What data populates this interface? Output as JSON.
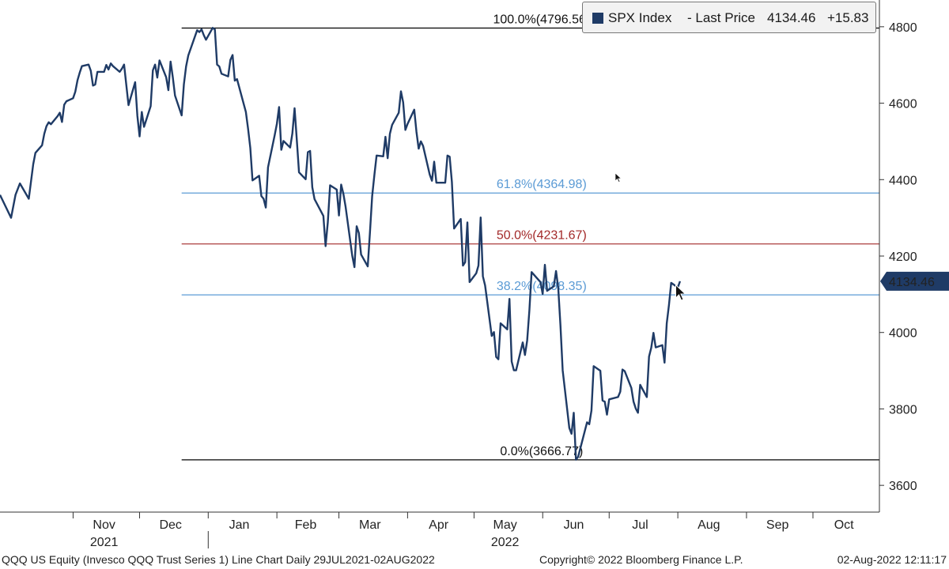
{
  "chart_data": {
    "type": "line",
    "series": [
      {
        "name": "SPX Index",
        "color": "#1f3b66",
        "points": [
          [
            "2021-09-29",
            4360
          ],
          [
            "2021-10-04",
            4300
          ],
          [
            "2021-10-06",
            4360
          ],
          [
            "2021-10-08",
            4390
          ],
          [
            "2021-10-12",
            4350
          ],
          [
            "2021-10-14",
            4440
          ],
          [
            "2021-10-15",
            4470
          ],
          [
            "2021-10-18",
            4490
          ],
          [
            "2021-10-19",
            4520
          ],
          [
            "2021-10-20",
            4540
          ],
          [
            "2021-10-21",
            4550
          ],
          [
            "2021-10-22",
            4545
          ],
          [
            "2021-10-25",
            4566
          ],
          [
            "2021-10-26",
            4575
          ],
          [
            "2021-10-27",
            4551
          ],
          [
            "2021-10-28",
            4596
          ],
          [
            "2021-10-29",
            4605
          ],
          [
            "2021-11-01",
            4613
          ],
          [
            "2021-11-02",
            4630
          ],
          [
            "2021-11-03",
            4660
          ],
          [
            "2021-11-04",
            4680
          ],
          [
            "2021-11-05",
            4697
          ],
          [
            "2021-11-08",
            4701
          ],
          [
            "2021-11-09",
            4685
          ],
          [
            "2021-11-10",
            4646
          ],
          [
            "2021-11-11",
            4649
          ],
          [
            "2021-11-12",
            4682
          ],
          [
            "2021-11-15",
            4682
          ],
          [
            "2021-11-16",
            4700
          ],
          [
            "2021-11-17",
            4688
          ],
          [
            "2021-11-18",
            4704
          ],
          [
            "2021-11-19",
            4697
          ],
          [
            "2021-11-22",
            4682
          ],
          [
            "2021-11-23",
            4690
          ],
          [
            "2021-11-24",
            4701
          ],
          [
            "2021-11-26",
            4595
          ],
          [
            "2021-11-29",
            4655
          ],
          [
            "2021-11-30",
            4567
          ],
          [
            "2021-12-01",
            4513
          ],
          [
            "2021-12-02",
            4577
          ],
          [
            "2021-12-03",
            4538
          ],
          [
            "2021-12-06",
            4592
          ],
          [
            "2021-12-07",
            4686
          ],
          [
            "2021-12-08",
            4701
          ],
          [
            "2021-12-09",
            4667
          ],
          [
            "2021-12-10",
            4712
          ],
          [
            "2021-12-13",
            4668
          ],
          [
            "2021-12-14",
            4634
          ],
          [
            "2021-12-15",
            4709
          ],
          [
            "2021-12-16",
            4668
          ],
          [
            "2021-12-17",
            4620
          ],
          [
            "2021-12-20",
            4568
          ],
          [
            "2021-12-21",
            4649
          ],
          [
            "2021-12-22",
            4696
          ],
          [
            "2021-12-23",
            4725
          ],
          [
            "2021-12-27",
            4791
          ],
          [
            "2021-12-28",
            4786
          ],
          [
            "2021-12-29",
            4793
          ],
          [
            "2021-12-30",
            4778
          ],
          [
            "2021-12-31",
            4766
          ],
          [
            "2022-01-03",
            4797
          ],
          [
            "2022-01-04",
            4793
          ],
          [
            "2022-01-05",
            4701
          ],
          [
            "2022-01-06",
            4696
          ],
          [
            "2022-01-07",
            4677
          ],
          [
            "2022-01-10",
            4670
          ],
          [
            "2022-01-11",
            4713
          ],
          [
            "2022-01-12",
            4726
          ],
          [
            "2022-01-13",
            4659
          ],
          [
            "2022-01-14",
            4663
          ],
          [
            "2022-01-18",
            4577
          ],
          [
            "2022-01-19",
            4533
          ],
          [
            "2022-01-20",
            4483
          ],
          [
            "2022-01-21",
            4398
          ],
          [
            "2022-01-24",
            4410
          ],
          [
            "2022-01-25",
            4357
          ],
          [
            "2022-01-26",
            4350
          ],
          [
            "2022-01-27",
            4327
          ],
          [
            "2022-01-28",
            4432
          ],
          [
            "2022-01-31",
            4516
          ],
          [
            "2022-02-01",
            4546
          ],
          [
            "2022-02-02",
            4590
          ],
          [
            "2022-02-03",
            4478
          ],
          [
            "2022-02-04",
            4501
          ],
          [
            "2022-02-07",
            4484
          ],
          [
            "2022-02-08",
            4521
          ],
          [
            "2022-02-09",
            4587
          ],
          [
            "2022-02-10",
            4504
          ],
          [
            "2022-02-11",
            4419
          ],
          [
            "2022-02-14",
            4401
          ],
          [
            "2022-02-15",
            4472
          ],
          [
            "2022-02-16",
            4475
          ],
          [
            "2022-02-17",
            4380
          ],
          [
            "2022-02-18",
            4349
          ],
          [
            "2022-02-22",
            4305
          ],
          [
            "2022-02-23",
            4226
          ],
          [
            "2022-02-24",
            4288
          ],
          [
            "2022-02-25",
            4385
          ],
          [
            "2022-02-28",
            4374
          ],
          [
            "2022-03-01",
            4306
          ],
          [
            "2022-03-02",
            4387
          ],
          [
            "2022-03-03",
            4363
          ],
          [
            "2022-03-04",
            4329
          ],
          [
            "2022-03-07",
            4201
          ],
          [
            "2022-03-08",
            4171
          ],
          [
            "2022-03-09",
            4278
          ],
          [
            "2022-03-10",
            4260
          ],
          [
            "2022-03-11",
            4204
          ],
          [
            "2022-03-14",
            4173
          ],
          [
            "2022-03-15",
            4262
          ],
          [
            "2022-03-16",
            4357
          ],
          [
            "2022-03-17",
            4412
          ],
          [
            "2022-03-18",
            4463
          ],
          [
            "2022-03-21",
            4461
          ],
          [
            "2022-03-22",
            4512
          ],
          [
            "2022-03-23",
            4456
          ],
          [
            "2022-03-24",
            4520
          ],
          [
            "2022-03-25",
            4543
          ],
          [
            "2022-03-28",
            4575
          ],
          [
            "2022-03-29",
            4631
          ],
          [
            "2022-03-30",
            4602
          ],
          [
            "2022-03-31",
            4530
          ],
          [
            "2022-04-01",
            4546
          ],
          [
            "2022-04-04",
            4583
          ],
          [
            "2022-04-05",
            4525
          ],
          [
            "2022-04-06",
            4481
          ],
          [
            "2022-04-07",
            4500
          ],
          [
            "2022-04-08",
            4488
          ],
          [
            "2022-04-11",
            4413
          ],
          [
            "2022-04-12",
            4397
          ],
          [
            "2022-04-13",
            4447
          ],
          [
            "2022-04-14",
            4392
          ],
          [
            "2022-04-18",
            4392
          ],
          [
            "2022-04-19",
            4463
          ],
          [
            "2022-04-20",
            4460
          ],
          [
            "2022-04-21",
            4394
          ],
          [
            "2022-04-22",
            4272
          ],
          [
            "2022-04-25",
            4297
          ],
          [
            "2022-04-26",
            4175
          ],
          [
            "2022-04-27",
            4184
          ],
          [
            "2022-04-28",
            4288
          ],
          [
            "2022-04-29",
            4132
          ],
          [
            "2022-05-02",
            4155
          ],
          [
            "2022-05-03",
            4175
          ],
          [
            "2022-05-04",
            4301
          ],
          [
            "2022-05-05",
            4147
          ],
          [
            "2022-05-06",
            4123
          ],
          [
            "2022-05-09",
            3991
          ],
          [
            "2022-05-10",
            4001
          ],
          [
            "2022-05-11",
            3936
          ],
          [
            "2022-05-12",
            3930
          ],
          [
            "2022-05-13",
            4024
          ],
          [
            "2022-05-16",
            4008
          ],
          [
            "2022-05-17",
            4088
          ],
          [
            "2022-05-18",
            3924
          ],
          [
            "2022-05-19",
            3901
          ],
          [
            "2022-05-20",
            3901
          ],
          [
            "2022-05-23",
            3974
          ],
          [
            "2022-05-24",
            3941
          ],
          [
            "2022-05-25",
            3979
          ],
          [
            "2022-05-26",
            4058
          ],
          [
            "2022-05-27",
            4158
          ],
          [
            "2022-05-31",
            4132
          ],
          [
            "2022-06-01",
            4101
          ],
          [
            "2022-06-02",
            4177
          ],
          [
            "2022-06-03",
            4109
          ],
          [
            "2022-06-06",
            4121
          ],
          [
            "2022-06-07",
            4161
          ],
          [
            "2022-06-08",
            4116
          ],
          [
            "2022-06-09",
            4018
          ],
          [
            "2022-06-10",
            3901
          ],
          [
            "2022-06-13",
            3750
          ],
          [
            "2022-06-14",
            3735
          ],
          [
            "2022-06-15",
            3790
          ],
          [
            "2022-06-16",
            3667
          ],
          [
            "2022-06-17",
            3675
          ],
          [
            "2022-06-21",
            3765
          ],
          [
            "2022-06-22",
            3760
          ],
          [
            "2022-06-23",
            3796
          ],
          [
            "2022-06-24",
            3912
          ],
          [
            "2022-06-27",
            3900
          ],
          [
            "2022-06-28",
            3822
          ],
          [
            "2022-06-29",
            3819
          ],
          [
            "2022-06-30",
            3785
          ],
          [
            "2022-07-01",
            3825
          ],
          [
            "2022-07-05",
            3831
          ],
          [
            "2022-07-06",
            3845
          ],
          [
            "2022-07-07",
            3903
          ],
          [
            "2022-07-08",
            3899
          ],
          [
            "2022-07-11",
            3855
          ],
          [
            "2022-07-12",
            3819
          ],
          [
            "2022-07-13",
            3801
          ],
          [
            "2022-07-14",
            3790
          ],
          [
            "2022-07-15",
            3863
          ],
          [
            "2022-07-18",
            3831
          ],
          [
            "2022-07-19",
            3937
          ],
          [
            "2022-07-20",
            3960
          ],
          [
            "2022-07-21",
            3999
          ],
          [
            "2022-07-22",
            3961
          ],
          [
            "2022-07-25",
            3967
          ],
          [
            "2022-07-26",
            3921
          ],
          [
            "2022-07-27",
            4024
          ],
          [
            "2022-07-28",
            4072
          ],
          [
            "2022-07-29",
            4130
          ],
          [
            "2022-08-01",
            4118
          ],
          [
            "2022-08-02",
            4134
          ]
        ]
      }
    ],
    "fib_levels": [
      {
        "label": "100.0%(4796.56)",
        "value": 4796.56,
        "color": "#000000"
      },
      {
        "label": "61.8%(4364.98)",
        "value": 4364.98,
        "color": "#5b9bd5"
      },
      {
        "label": "50.0%(4231.67)",
        "value": 4231.67,
        "color": "#a32a2a"
      },
      {
        "label": "38.2%(4098.35)",
        "value": 4098.35,
        "color": "#5b9bd5"
      },
      {
        "label": "0.0%(3666.77)",
        "value": 3666.77,
        "color": "#000000"
      }
    ],
    "fib_start_date": "2021-12-20",
    "ylim": [
      3530,
      4870
    ],
    "y_ticks": [
      3600,
      3800,
      4000,
      4200,
      4400,
      4600,
      4800
    ],
    "xlim": [
      "2021-09-29",
      "2022-10-31"
    ],
    "months": [
      {
        "label": "Nov",
        "mid": "2021-11-15"
      },
      {
        "label": "Dec",
        "mid": "2021-12-15"
      },
      {
        "label": "Jan",
        "mid": "2022-01-15"
      },
      {
        "label": "Feb",
        "mid": "2022-02-14"
      },
      {
        "label": "Mar",
        "mid": "2022-03-15"
      },
      {
        "label": "Apr",
        "mid": "2022-04-15"
      },
      {
        "label": "May",
        "mid": "2022-05-15"
      },
      {
        "label": "Jun",
        "mid": "2022-06-15"
      },
      {
        "label": "Jul",
        "mid": "2022-07-15"
      },
      {
        "label": "Aug",
        "mid": "2022-08-15"
      },
      {
        "label": "Sep",
        "mid": "2022-09-15"
      },
      {
        "label": "Oct",
        "mid": "2022-10-15"
      }
    ],
    "month_boundaries": [
      "2021-11-01",
      "2021-12-01",
      "2022-01-01",
      "2022-02-01",
      "2022-03-01",
      "2022-04-01",
      "2022-05-01",
      "2022-06-01",
      "2022-07-01",
      "2022-08-01",
      "2022-09-01",
      "2022-10-01"
    ],
    "years": [
      {
        "label": "2021",
        "mid": "2021-11-15"
      },
      {
        "label": "2022",
        "mid": "2022-05-15"
      }
    ],
    "year_separator": "2022-01-01",
    "last_price_tag": "4134.46",
    "grid": false
  },
  "legend": {
    "name": "SPX Index",
    "field": "- Last Price",
    "last": "4134.46",
    "change": "+15.83"
  },
  "footer": {
    "description": "QQQ US Equity (Invesco QQQ Trust Series 1) Line Chart  Daily 29JUL2021-02AUG2022",
    "copyright": "Copyright© 2022 Bloomberg Finance L.P.",
    "timestamp": "02-Aug-2022 12:11:17"
  }
}
